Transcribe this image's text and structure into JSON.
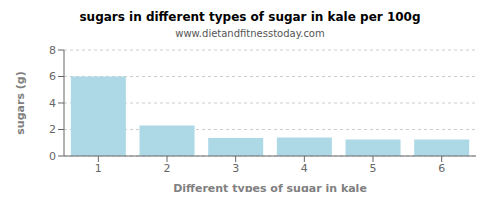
{
  "chart_data": {
    "type": "bar",
    "title": "sugars in different types of sugar in kale per 100g",
    "subtitle": "www.dietandfitnesstoday.com",
    "xlabel": "Different types of sugar in kale",
    "ylabel": "sugars (g)",
    "categories": [
      1,
      2,
      3,
      4,
      5,
      6
    ],
    "values": [
      6.0,
      2.3,
      1.35,
      1.4,
      1.25,
      1.25
    ],
    "color": "#add8e6",
    "ylim": [
      0,
      8
    ],
    "yticks": [
      0,
      2,
      4,
      6,
      8
    ],
    "grid": true
  }
}
